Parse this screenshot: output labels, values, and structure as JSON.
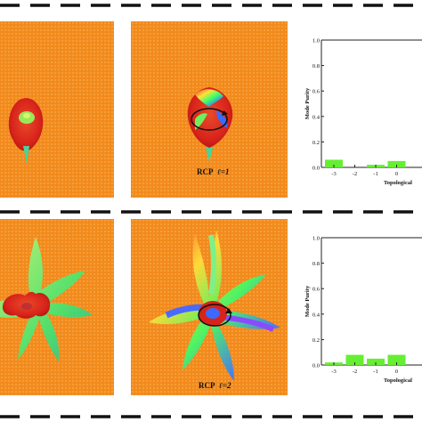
{
  "figure": {
    "row1": {
      "caption_polarization": "RCP",
      "caption_ell": "ℓ=1"
    },
    "row2": {
      "caption_polarization": "RCP",
      "caption_ell": "ℓ=2"
    }
  },
  "colors": {
    "background_pattern": "#f28a1c",
    "pattern_dot": "#f7a03c",
    "bar": "#66ee33",
    "dashes": "#111111"
  },
  "chart_data": [
    {
      "type": "bar",
      "ylabel": "Mode Purity",
      "xlabel": "Topological",
      "ylim": [
        0,
        1.0
      ],
      "yticks": [
        "0.0",
        "0.2",
        "0.4",
        "0.6",
        "0.8",
        "1.0"
      ],
      "categories": [
        "-3",
        "-2",
        "-1",
        "0"
      ],
      "values": [
        0.06,
        0.0,
        0.02,
        0.05
      ]
    },
    {
      "type": "bar",
      "ylabel": "Mode Purity",
      "xlabel": "Topological",
      "ylim": [
        0,
        1.0
      ],
      "yticks": [
        "0.0",
        "0.2",
        "0.4",
        "0.6",
        "0.8",
        "1.0"
      ],
      "categories": [
        "-3",
        "-2",
        "-1",
        "0"
      ],
      "values": [
        0.02,
        0.08,
        0.05,
        0.08
      ]
    }
  ]
}
